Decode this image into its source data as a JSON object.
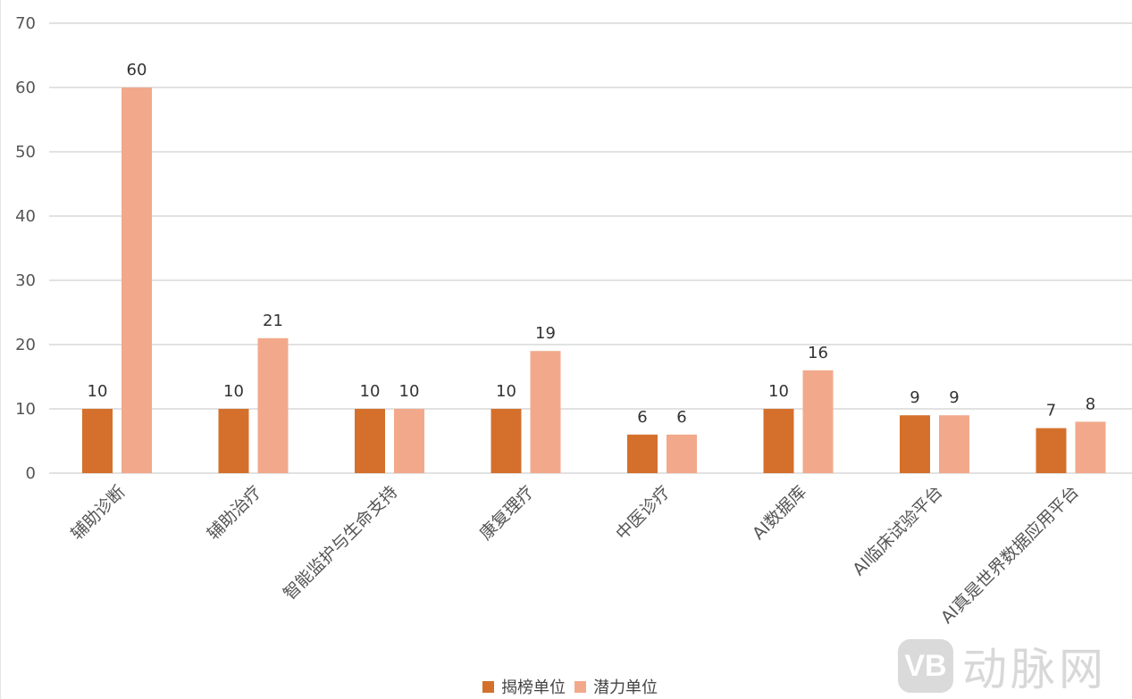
{
  "chart_data": {
    "type": "bar",
    "title": "",
    "xlabel": "",
    "ylabel": "",
    "ylim": [
      0,
      70
    ],
    "yticks": [
      0,
      10,
      20,
      30,
      40,
      50,
      60,
      70
    ],
    "grid": true,
    "legend_position": "bottom",
    "categories": [
      "辅助诊断",
      "辅助治疗",
      "智能监护与生命支持",
      "康复理疗",
      "中医诊疗",
      "AI数据库",
      "AI临床试验平台",
      "AI真是世界数据应用平台"
    ],
    "series": [
      {
        "name": "揭榜单位",
        "color": "#D4702C",
        "values": [
          10,
          10,
          10,
          10,
          6,
          10,
          9,
          7
        ]
      },
      {
        "name": "潜力单位",
        "color": "#F2A98B",
        "values": [
          60,
          21,
          10,
          19,
          6,
          16,
          9,
          8
        ]
      }
    ]
  },
  "watermark": {
    "logo": "VB",
    "text": "动脉网"
  }
}
